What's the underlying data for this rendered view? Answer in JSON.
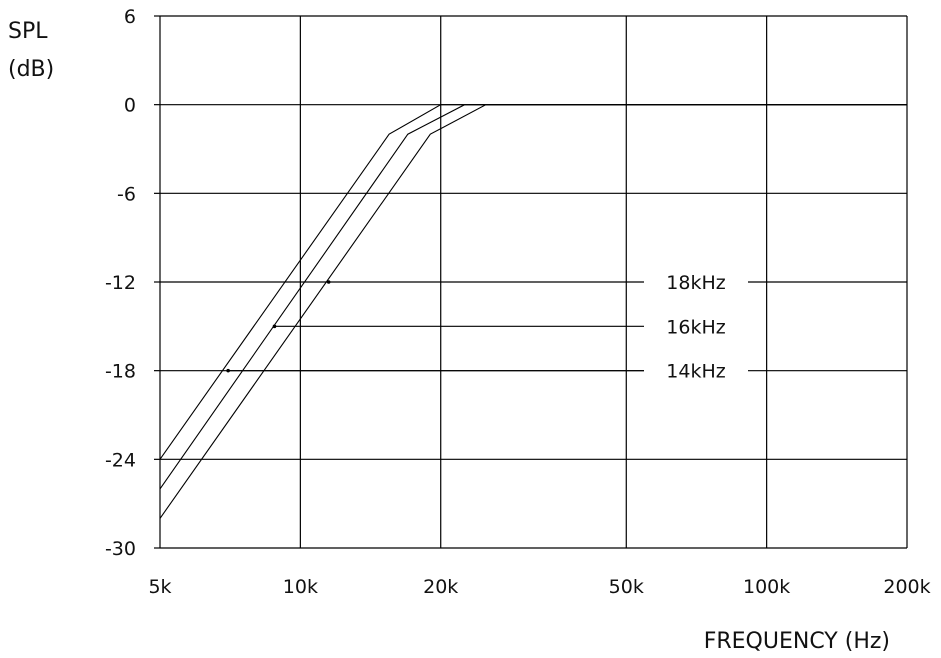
{
  "chart_data": {
    "type": "line",
    "title": "",
    "ylabel_line1": "SPL",
    "ylabel_line2": "(dB)",
    "xlabel": "FREQUENCY (Hz)",
    "x_scale": "log",
    "xlim": [
      5000,
      200000
    ],
    "ylim": [
      -30,
      6
    ],
    "x_ticks": [
      {
        "value": 5000,
        "label": "5k"
      },
      {
        "value": 10000,
        "label": "10k"
      },
      {
        "value": 20000,
        "label": "20k"
      },
      {
        "value": 50000,
        "label": "50k"
      },
      {
        "value": 100000,
        "label": "100k"
      },
      {
        "value": 200000,
        "label": "200k"
      }
    ],
    "y_ticks": [
      {
        "value": 6,
        "label": "6"
      },
      {
        "value": 0,
        "label": "0"
      },
      {
        "value": -6,
        "label": "-6"
      },
      {
        "value": -12,
        "label": "-12"
      },
      {
        "value": -18,
        "label": "-18"
      },
      {
        "value": -24,
        "label": "-24"
      },
      {
        "value": -30,
        "label": "-30"
      }
    ],
    "grid": true,
    "series": [
      {
        "name": "14kHz",
        "x": [
          5000,
          15500,
          20000,
          200000
        ],
        "y": [
          -24,
          -2,
          0,
          0
        ],
        "marker": {
          "x": 7000,
          "y": -18
        }
      },
      {
        "name": "16kHz",
        "x": [
          5000,
          17000,
          22500,
          200000
        ],
        "y": [
          -26,
          -2,
          0,
          0
        ],
        "marker": {
          "x": 8800,
          "y": -15
        }
      },
      {
        "name": "18kHz",
        "x": [
          5000,
          19000,
          25000,
          200000
        ],
        "y": [
          -28,
          -2,
          0,
          0
        ],
        "marker": {
          "x": 11500,
          "y": -12
        }
      }
    ]
  },
  "callouts": [
    {
      "label": "18kHz",
      "y": -12
    },
    {
      "label": "16kHz",
      "y": -15
    },
    {
      "label": "14kHz",
      "y": -18
    }
  ]
}
